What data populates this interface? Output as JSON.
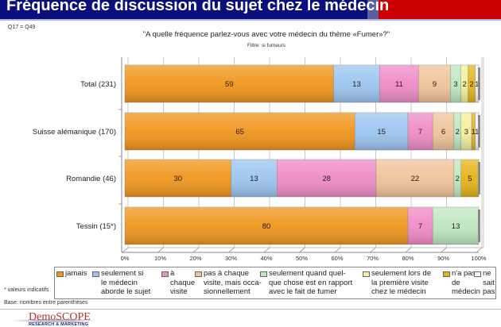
{
  "header": {
    "title": "Fréquence de discussion du sujet chez le médecin",
    "bg_color": "#0b0f7c",
    "accent_color": "#cc0000"
  },
  "question_ref": "Q17 = Q49",
  "question": "\"A quelle fréquence parlez-vous avec votre médecin du thème «Fumer»?\"",
  "filter": "Filtre: si fumeurs",
  "footnotes": {
    "indicative": "* valeurs indicatifs",
    "base": "Base: nombres entre parenthèses"
  },
  "logo": {
    "name": "DemoSCOPE",
    "tagline": "RESEARCH & MARKETING"
  },
  "chart_data": {
    "type": "bar",
    "orientation": "horizontal",
    "stacked": true,
    "percent_stacked": true,
    "title": "\"A quelle fréquence parlez-vous avec votre médecin du thème «Fumer»?\"",
    "subtitle": "Filtre: si fumeurs",
    "xlabel": "",
    "ylabel": "",
    "xlim": [
      0,
      100
    ],
    "grid": true,
    "legend_position": "bottom",
    "categories": [
      "Total (231)",
      "Suisse alémanique (170)",
      "Romandie (46)",
      "Tessin (15*)"
    ],
    "x_ticks": [
      "0%",
      "10%",
      "20%",
      "30%",
      "40%",
      "50%",
      "60%",
      "70%",
      "80%",
      "90%",
      "100%"
    ],
    "series": [
      {
        "name": "jamais",
        "color": "#f0961e",
        "values": [
          59,
          65,
          30,
          80
        ],
        "labels": [
          "59",
          "65",
          "30",
          "80"
        ]
      },
      {
        "name": "seulement si\nle médecin\naborde le sujet",
        "color": "#9cc6f0",
        "values": [
          13,
          15,
          13,
          0
        ],
        "labels": [
          "13",
          "15",
          "13",
          ""
        ]
      },
      {
        "name": "à\nchaque\nvisite",
        "color": "#f08cc8",
        "values": [
          11,
          7,
          28,
          7
        ],
        "labels": [
          "11",
          "7",
          "28",
          "7"
        ]
      },
      {
        "name": "pas à chaque\nvisite, mais occa-\nsionnellement",
        "color": "#f0c49a",
        "values": [
          9,
          6,
          22,
          0
        ],
        "labels": [
          "9",
          "6",
          "22",
          ""
        ]
      },
      {
        "name": "seulement quand quel-\nque chose est en rapport\navec le fait de fumer",
        "color": "#bfe8c0",
        "values": [
          3,
          2,
          2,
          13
        ],
        "labels": [
          "3",
          "2",
          "2",
          "13"
        ]
      },
      {
        "name": "seulement lors de\nla première visite\nchez le médecin",
        "color": "#f4f0a0",
        "values": [
          2,
          3,
          0,
          0
        ],
        "labels": [
          "2",
          "3",
          "",
          ""
        ]
      },
      {
        "name": "n'a pas\nde\nmédecin",
        "color": "#e6b418",
        "values": [
          2,
          1,
          5,
          0
        ],
        "labels": [
          "2",
          "1",
          "5",
          ""
        ]
      },
      {
        "name": "ne\nsait\npas",
        "color": "#f4f4f4",
        "values": [
          1,
          1,
          0,
          0
        ],
        "labels": [
          "1",
          "1",
          "",
          ""
        ]
      }
    ]
  }
}
